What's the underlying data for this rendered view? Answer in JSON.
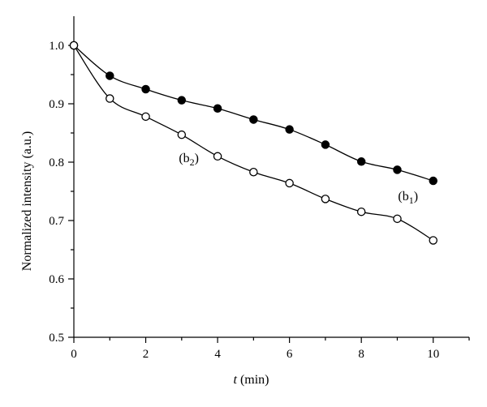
{
  "chart_data": {
    "type": "line",
    "xlabel_var": "t",
    "xlabel_unit": " (min)",
    "ylabel": "Normalized intensity (a.u.)",
    "xlim": [
      0,
      11
    ],
    "ylim": [
      0.5,
      1.05
    ],
    "x_ticks": [
      0,
      2,
      4,
      6,
      8,
      10
    ],
    "x_minor_ticks": [
      1,
      3,
      5,
      7,
      9,
      11
    ],
    "y_ticks": [
      0.5,
      0.6,
      0.7,
      0.8,
      0.9,
      1.0
    ],
    "y_tick_labels": [
      "0.5",
      "0.6",
      "0.7",
      "0.8",
      "0.9",
      "1.0"
    ],
    "y_minor_ticks": [
      0.55,
      0.65,
      0.75,
      0.85,
      0.95
    ],
    "grid": false,
    "legend": "none",
    "series": [
      {
        "name": "b1",
        "marker": "filled-circle",
        "color": "#000000",
        "x": [
          0,
          1,
          2,
          3,
          4,
          5,
          6,
          7,
          8,
          9,
          10
        ],
        "y": [
          1.0,
          0.948,
          0.925,
          0.906,
          0.892,
          0.873,
          0.856,
          0.83,
          0.801,
          0.787,
          0.768
        ]
      },
      {
        "name": "b2",
        "marker": "open-circle",
        "color": "#000000",
        "x": [
          0,
          1,
          2,
          3,
          4,
          5,
          6,
          7,
          8,
          9,
          10
        ],
        "y": [
          1.0,
          0.909,
          0.878,
          0.847,
          0.81,
          0.783,
          0.764,
          0.737,
          0.715,
          0.703,
          0.666
        ]
      }
    ],
    "annotations": [
      {
        "base": "(b",
        "sub": "1",
        "close": ")",
        "series": "b1",
        "x": 9.3,
        "y": 0.735
      },
      {
        "base": "(b",
        "sub": "2",
        "close": ")",
        "series": "b2",
        "x": 3.2,
        "y": 0.8
      }
    ]
  }
}
